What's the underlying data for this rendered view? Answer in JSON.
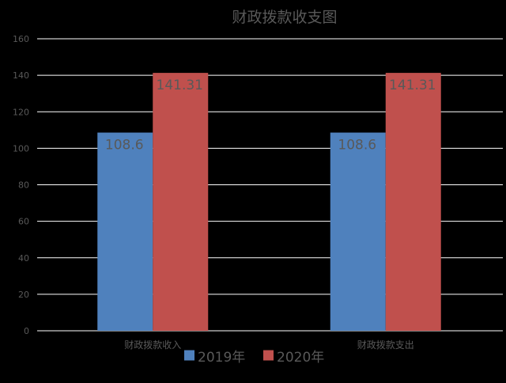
{
  "chart_data": {
    "type": "bar",
    "title": "财政拨款收支图",
    "categories": [
      "财政拨款收入",
      "财政拨款支出"
    ],
    "series": [
      {
        "name": "2019年",
        "values": [
          108.6,
          108.6
        ],
        "labels": [
          "108.6",
          "108.6"
        ],
        "color": "#4F81BD"
      },
      {
        "name": "2020年",
        "values": [
          141.31,
          141.31
        ],
        "labels": [
          "141.31",
          "141.31"
        ],
        "color": "#C0504D"
      }
    ],
    "ylim": [
      0,
      160
    ],
    "yticks": [
      0,
      20,
      40,
      60,
      80,
      100,
      120,
      140,
      160
    ],
    "xlabel": "",
    "ylabel": "",
    "grid": true,
    "legend_position": "bottom",
    "background": "#000000",
    "text_color": "#595959",
    "grid_color": "#FFFFFF"
  }
}
